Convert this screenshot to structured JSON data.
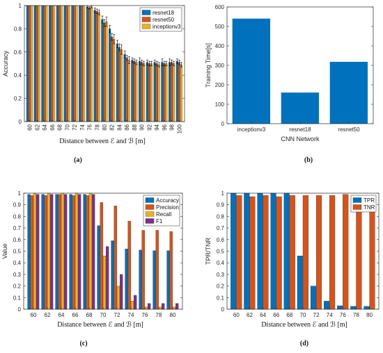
{
  "figure": {
    "colors": {
      "blue": "#0072BD",
      "orange": "#D95319",
      "yellow": "#EDB120",
      "purple": "#7E2F8E",
      "error_bar": "#000000"
    },
    "panel_a": {
      "caption": "(a)",
      "xlabel_text": "Distance between ℰ and ℬ [m]"
    },
    "panel_b": {
      "caption": "(b)"
    },
    "panel_c": {
      "caption": "(c)",
      "xlabel_text": "Distance between ℰ and ℬ [m]"
    },
    "panel_d": {
      "caption": "(d)",
      "xlabel_text": "Distance between ℰ and ℬ [m]"
    }
  },
  "chart_data": [
    {
      "id": "a",
      "type": "bar",
      "title": "",
      "xlabel": "Distance between ℰ and ℬ [m]",
      "ylabel": "Accuracy",
      "ylim": [
        0,
        1
      ],
      "yticks": [
        "0",
        "0.2",
        "0.4",
        "0.6",
        "0.8",
        "1"
      ],
      "yticks_vals": [
        0,
        0.2,
        0.4,
        0.6,
        0.8,
        1
      ],
      "grid": false,
      "legend": "top-right",
      "error_bars": true,
      "categories": [
        "60",
        "62",
        "64",
        "66",
        "68",
        "70",
        "72",
        "74",
        "76",
        "78",
        "80",
        "82",
        "84",
        "86",
        "88",
        "90",
        "92",
        "94",
        "96",
        "98",
        "100"
      ],
      "series": [
        {
          "name": "resnet18",
          "color": "#0072BD",
          "values": [
            1,
            1,
            1,
            1,
            1,
            1,
            1,
            1,
            0.99,
            0.96,
            0.88,
            0.8,
            0.67,
            0.58,
            0.53,
            0.52,
            0.51,
            0.51,
            0.51,
            0.51,
            0.52
          ],
          "errors": [
            0,
            0,
            0,
            0,
            0,
            0,
            0,
            0,
            0.01,
            0.02,
            0.03,
            0.03,
            0.03,
            0.03,
            0.02,
            0.03,
            0.02,
            0.02,
            0.03,
            0.03,
            0.02
          ]
        },
        {
          "name": "resnet50",
          "color": "#D95319",
          "values": [
            1,
            1,
            1,
            1,
            1,
            1,
            1,
            1,
            0.98,
            0.95,
            0.85,
            0.73,
            0.64,
            0.55,
            0.52,
            0.51,
            0.5,
            0.5,
            0.5,
            0.51,
            0.51
          ],
          "errors": [
            0,
            0,
            0,
            0,
            0,
            0,
            0,
            0,
            0.01,
            0.02,
            0.03,
            0.03,
            0.03,
            0.02,
            0.02,
            0.02,
            0.02,
            0.02,
            0.02,
            0.02,
            0.02
          ]
        },
        {
          "name": "inceptionv3",
          "color": "#EDB120",
          "values": [
            1,
            1,
            1,
            1,
            1,
            1,
            1,
            1,
            0.99,
            0.94,
            0.86,
            0.71,
            0.62,
            0.53,
            0.51,
            0.5,
            0.5,
            0.49,
            0.5,
            0.5,
            0.49
          ],
          "errors": [
            0,
            0,
            0,
            0,
            0,
            0,
            0,
            0,
            0.01,
            0.02,
            0.04,
            0.04,
            0.04,
            0.03,
            0.02,
            0.02,
            0.02,
            0.02,
            0.02,
            0.02,
            0.02
          ]
        }
      ]
    },
    {
      "id": "b",
      "type": "bar",
      "title": "",
      "xlabel": "CNN Network",
      "ylabel": "Training Time[s]",
      "ylim": [
        0,
        600
      ],
      "yticks": [
        "0",
        "100",
        "200",
        "300",
        "400",
        "500",
        "600"
      ],
      "yticks_vals": [
        0,
        100,
        200,
        300,
        400,
        500,
        600
      ],
      "grid": false,
      "categories": [
        "inceptionv3",
        "resnet18",
        "resnet50"
      ],
      "series": [
        {
          "color": "#0072BD",
          "values": [
            540,
            160,
            318
          ]
        }
      ]
    },
    {
      "id": "c",
      "type": "bar",
      "title": "",
      "xlabel": "Distance between ℰ and ℬ [m]",
      "ylabel": "Value",
      "ylim": [
        0,
        1
      ],
      "yticks": [
        "0",
        "0.1",
        "0.2",
        "0.3",
        "0.4",
        "0.5",
        "0.6",
        "0.7",
        "0.8",
        "0.9",
        "1"
      ],
      "yticks_vals": [
        0,
        0.1,
        0.2,
        0.3,
        0.4,
        0.5,
        0.6,
        0.7,
        0.8,
        0.9,
        1
      ],
      "grid": false,
      "legend": "top-right",
      "categories": [
        "60",
        "62",
        "64",
        "66",
        "68",
        "70",
        "72",
        "74",
        "76",
        "78",
        "80"
      ],
      "series": [
        {
          "name": "Accuracy",
          "color": "#0072BD",
          "values": [
            0.99,
            0.99,
            0.99,
            0.99,
            0.99,
            0.72,
            0.59,
            0.52,
            0.51,
            0.505,
            0.505
          ]
        },
        {
          "name": "Precision",
          "color": "#D95319",
          "values": [
            0.98,
            0.98,
            0.99,
            0.98,
            0.98,
            0.92,
            0.89,
            0.76,
            0.68,
            0.68,
            0.67
          ]
        },
        {
          "name": "Recall",
          "color": "#EDB120",
          "values": [
            1,
            1,
            1,
            1,
            1,
            0.46,
            0.2,
            0.07,
            0.02,
            0.02,
            0.02
          ]
        },
        {
          "name": "F1",
          "color": "#7E2F8E",
          "values": [
            0.99,
            0.99,
            0.99,
            0.99,
            0.99,
            0.54,
            0.3,
            0.12,
            0.05,
            0.05,
            0.05
          ]
        }
      ]
    },
    {
      "id": "d",
      "type": "bar",
      "title": "",
      "xlabel": "Distance between ℰ and ℬ [m]",
      "ylabel": "TPR/TNR",
      "ylim": [
        0,
        1
      ],
      "yticks": [
        "0",
        "0.1",
        "0.2",
        "0.3",
        "0.4",
        "0.5",
        "0.6",
        "0.7",
        "0.8",
        "0.9",
        "1"
      ],
      "yticks_vals": [
        0,
        0.1,
        0.2,
        0.3,
        0.4,
        0.5,
        0.6,
        0.7,
        0.8,
        0.9,
        1
      ],
      "grid": false,
      "legend": "top-right",
      "categories": [
        "60",
        "62",
        "64",
        "66",
        "68",
        "70",
        "72",
        "74",
        "76",
        "78",
        "80"
      ],
      "series": [
        {
          "name": "TPR",
          "color": "#0072BD",
          "values": [
            1,
            1,
            1,
            1,
            1,
            0.46,
            0.2,
            0.07,
            0.03,
            0.025,
            0.025
          ]
        },
        {
          "name": "TNR",
          "color": "#D95319",
          "values": [
            0.98,
            0.97,
            0.98,
            0.97,
            0.98,
            0.98,
            0.98,
            0.98,
            0.99,
            0.98,
            0.98
          ]
        }
      ]
    }
  ]
}
